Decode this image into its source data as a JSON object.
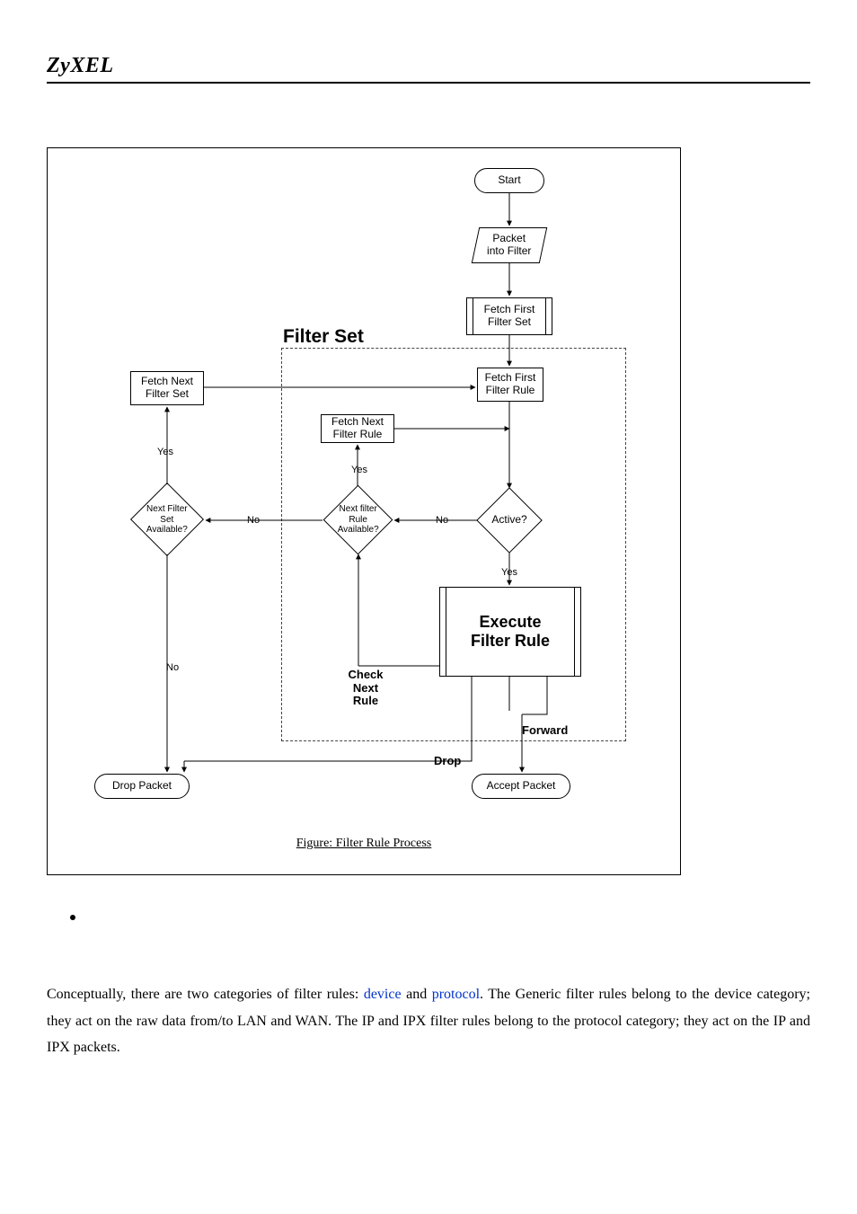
{
  "brand": "ZyXEL",
  "figure": {
    "caption": "Figure: Filter Rule Process",
    "area_title": "Filter Set",
    "nodes": {
      "start": {
        "label": "Start"
      },
      "packet_into_filter": {
        "label": "Packet\ninto Filter"
      },
      "fetch_first_set": {
        "label": "Fetch First\nFilter Set"
      },
      "fetch_first_rule": {
        "label": "Fetch First\nFilter Rule"
      },
      "fetch_next_set": {
        "label": "Fetch Next\nFilter Set"
      },
      "fetch_next_rule": {
        "label": "Fetch Next\nFilter Rule"
      },
      "active": {
        "label": "Active?"
      },
      "next_rule_avail": {
        "label": "Next filter\nRule\nAvailable?"
      },
      "next_set_avail": {
        "label": "Next Filter Set\nAvailable?"
      },
      "execute": {
        "label": "Execute\nFilter Rule"
      },
      "check_next_rule": {
        "label": "Check\nNext\nRule"
      },
      "drop_packet": {
        "label": "Drop Packet"
      },
      "accept_packet": {
        "label": "Accept Packet"
      }
    },
    "labels": {
      "yes1": "Yes",
      "yes2": "Yes",
      "yes3": "Yes",
      "no1": "No",
      "no2": "No",
      "no3": "No",
      "drop": "Drop",
      "forward": "Forward"
    },
    "colors": {
      "background": "#ffffff",
      "stroke": "#000000",
      "dash": "#444444",
      "text": "#000000",
      "link": "#0033cc"
    },
    "fontsize": {
      "node": 12,
      "label": 11,
      "title": 21,
      "caption": 14
    }
  },
  "bodytext": {
    "pre": "Conceptually, there are two categories of filter rules: ",
    "link1": "device",
    "mid1": " and ",
    "link2": "protocol",
    "post": ". The Generic filter rules belong to the device category; they act on the raw data from/to LAN and WAN. The IP and IPX filter rules belong to the protocol category; they act on the IP and IPX packets."
  }
}
